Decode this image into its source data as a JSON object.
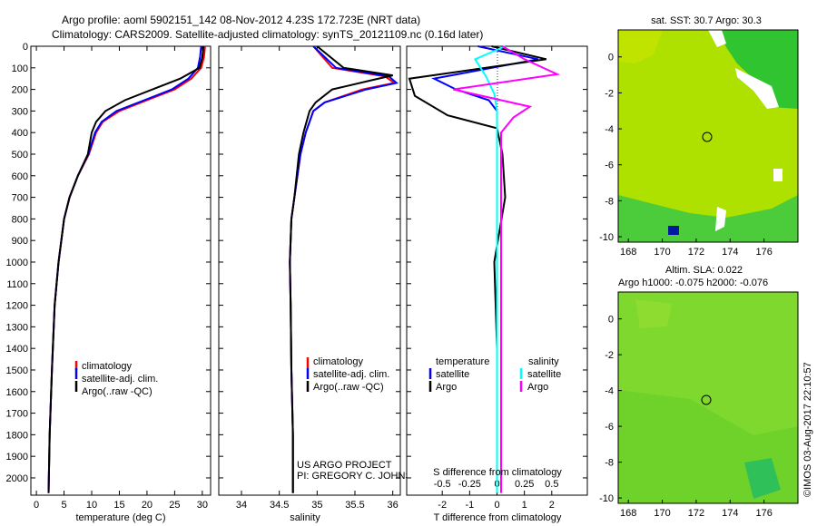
{
  "header": {
    "title_line1": "Argo profile: aoml 5902151_142 08-Nov-2012 4.23S 172.723E (NRT data)",
    "title_line2": "Climatology: CARS2009. Satellite-adjusted climatology: synTS_20121109.nc (0.16d later)"
  },
  "colors": {
    "climatology": "#ff0000",
    "satellite": "#0000ff",
    "argo": "#000000",
    "sat_salinity": "#00ffff",
    "argo_salinity": "#ff00ff"
  },
  "chart_data": [
    {
      "type": "line",
      "id": "temperature-profile",
      "xlabel": "temperature (deg C)",
      "ylabel": "",
      "xlim": [
        -1,
        31.5
      ],
      "ylim": [
        2080,
        0
      ],
      "xticks": [
        0,
        5,
        10,
        15,
        20,
        25,
        30
      ],
      "yticks": [
        0,
        100,
        200,
        300,
        400,
        500,
        600,
        700,
        800,
        900,
        1000,
        1100,
        1200,
        1300,
        1400,
        1500,
        1600,
        1700,
        1800,
        1900,
        2000
      ],
      "legend": [
        "climatology",
        "satellite-adj. clim.",
        "Argo(..raw -QC)"
      ],
      "series": [
        {
          "name": "climatology",
          "x": [
            30.5,
            30.3,
            29.8,
            28,
            25,
            20,
            15,
            12,
            10.8,
            9.5,
            7.5,
            6,
            5,
            4,
            3.3,
            2.8,
            2.4,
            2.2
          ],
          "y": [
            0,
            50,
            100,
            150,
            200,
            250,
            300,
            350,
            400,
            500,
            600,
            700,
            800,
            1000,
            1200,
            1500,
            1800,
            2070
          ]
        },
        {
          "name": "satellite-adj. clim.",
          "x": [
            29.8,
            29.6,
            29.2,
            27.5,
            24.5,
            19.5,
            14.5,
            11.8,
            10.6,
            9.4,
            7.5,
            6,
            5,
            4,
            3.3,
            2.8,
            2.4,
            2.2
          ],
          "y": [
            0,
            50,
            100,
            150,
            200,
            250,
            300,
            350,
            400,
            500,
            600,
            700,
            800,
            1000,
            1200,
            1500,
            1800,
            2070
          ]
        },
        {
          "name": "Argo(..raw -QC)",
          "x": [
            30.2,
            30.0,
            29.5,
            26,
            21,
            16,
            12.5,
            10.8,
            10,
            9.3,
            7.5,
            6,
            5,
            4,
            3.3,
            2.8,
            2.4,
            2.2
          ],
          "y": [
            0,
            50,
            100,
            150,
            200,
            250,
            300,
            350,
            400,
            500,
            600,
            700,
            800,
            1000,
            1200,
            1500,
            1800,
            2070
          ]
        }
      ]
    },
    {
      "type": "line",
      "id": "salinity-profile",
      "xlabel": "salinity",
      "xlim": [
        33.7,
        36.1
      ],
      "ylim": [
        2080,
        0
      ],
      "xticks": [
        34,
        34.5,
        35,
        35.5,
        36
      ],
      "legend": [
        "climatology",
        "satellite-adj. clim.",
        "Argo(..raw -QC)"
      ],
      "series": [
        {
          "name": "climatology",
          "x": [
            34.95,
            35.2,
            35.9,
            36.02,
            35.6,
            35.1,
            34.95,
            34.85,
            34.78,
            34.7,
            34.66,
            34.64,
            34.65,
            34.66,
            34.68,
            34.68
          ],
          "y": [
            0,
            100,
            140,
            170,
            200,
            260,
            300,
            400,
            500,
            700,
            800,
            1000,
            1200,
            1500,
            1800,
            2070
          ]
        },
        {
          "name": "satellite-adj. clim.",
          "x": [
            34.95,
            35.25,
            35.95,
            36.05,
            35.65,
            35.1,
            34.95,
            34.85,
            34.78,
            34.7,
            34.66,
            34.64,
            34.65,
            34.66,
            34.68,
            34.68
          ],
          "y": [
            0,
            100,
            140,
            170,
            200,
            260,
            300,
            400,
            500,
            700,
            800,
            1000,
            1200,
            1500,
            1800,
            2070
          ]
        },
        {
          "name": "Argo(..raw -QC)",
          "x": [
            35.0,
            35.35,
            36.0,
            35.75,
            35.2,
            34.98,
            34.9,
            34.82,
            34.76,
            34.7,
            34.66,
            34.64,
            34.65,
            34.66,
            34.68,
            34.68
          ],
          "y": [
            0,
            100,
            135,
            155,
            200,
            260,
            300,
            400,
            500,
            700,
            800,
            1000,
            1200,
            1500,
            1800,
            2070
          ]
        }
      ]
    },
    {
      "type": "line",
      "id": "difference-profile",
      "xlabel": "T difference from climatology",
      "x2label": "S difference from climatology",
      "xlim": [
        -3.3,
        3.3
      ],
      "ylim": [
        2080,
        0
      ],
      "xticks": [
        -2,
        -1,
        0,
        1,
        2
      ],
      "x2ticks": [
        "-0.5",
        "-0.25",
        "0",
        "0.25",
        "0.5"
      ],
      "legend_headers": [
        "temperature",
        "salinity"
      ],
      "legend_temperature": [
        "satellite",
        "Argo"
      ],
      "legend_salinity": [
        "satellite",
        "Argo"
      ],
      "series": [
        {
          "name": "temperature satellite",
          "x": [
            -0.7,
            1.5,
            -2.3,
            -1.5,
            -0.3,
            0,
            0,
            0
          ],
          "y": [
            0,
            60,
            150,
            200,
            250,
            300,
            800,
            2070
          ]
        },
        {
          "name": "temperature Argo",
          "x": [
            -0.2,
            1.8,
            -3.2,
            -3.0,
            -1.8,
            0,
            0.2,
            0.3,
            -0.1,
            0,
            0
          ],
          "y": [
            0,
            60,
            150,
            230,
            320,
            380,
            500,
            700,
            1000,
            1400,
            2070
          ]
        },
        {
          "name": "salinity satellite",
          "x": [
            0.3,
            -0.8,
            -0.4,
            -0.1,
            0,
            0,
            0
          ],
          "y": [
            0,
            60,
            140,
            220,
            300,
            800,
            2070
          ]
        },
        {
          "name": "salinity Argo",
          "x": [
            0.2,
            1.0,
            2.2,
            -1.6,
            1.2,
            0.6,
            0.15,
            0.15,
            0.15,
            0.15
          ],
          "y": [
            0,
            60,
            130,
            200,
            280,
            330,
            400,
            800,
            1400,
            2070
          ]
        }
      ]
    }
  ],
  "maps": [
    {
      "title": "sat. SST: 30.7  Argo: 30.3",
      "xticks": [
        "168",
        "170",
        "172",
        "174",
        "176"
      ],
      "yticks": [
        "0",
        "-2",
        "-4",
        "-6",
        "-8",
        "-10"
      ]
    },
    {
      "title_line1": "Altim. SLA: 0.022",
      "title_line2": "Argo h1000: -0.075 h2000: -0.076",
      "xticks": [
        "168",
        "170",
        "172",
        "174",
        "176"
      ],
      "yticks": [
        "0",
        "-2",
        "-4",
        "-6",
        "-8",
        "-10"
      ]
    }
  ],
  "annotations": {
    "project_line1": "US ARGO PROJECT",
    "project_line2": "PI: GREGORY C. JOHNSON",
    "stamp": "©IMOS 03-Aug-2017 22:10:57"
  }
}
